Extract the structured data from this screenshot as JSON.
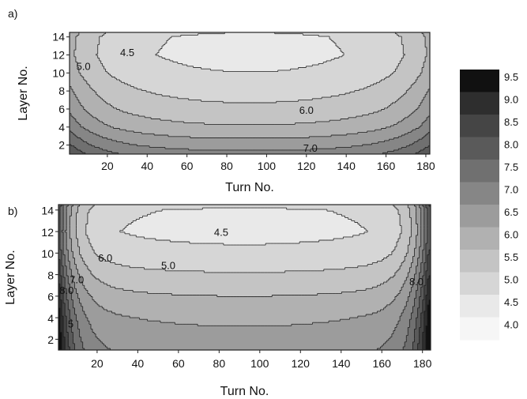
{
  "chart_data": [
    {
      "panel": "a)",
      "type": "heatmap",
      "xlabel": "Turn No.",
      "ylabel": "Layer No.",
      "xlim": [
        1,
        182
      ],
      "ylim": [
        1,
        14.5
      ],
      "xticks": [
        20,
        40,
        60,
        80,
        100,
        120,
        140,
        160,
        180
      ],
      "yticks": [
        2,
        4,
        6,
        8,
        10,
        12,
        14
      ],
      "profile": {
        "layer_base": {
          "x": [
            1,
            2,
            4,
            6,
            8,
            10,
            12,
            14,
            14.5
          ],
          "y": [
            7.15,
            6.75,
            6.05,
            5.6,
            5.3,
            5.0,
            4.85,
            4.9,
            5.0
          ]
        },
        "turn_bowl_width": 0.32,
        "turn_bowl_center": 91.5,
        "end_rise": 1.0,
        "end_decay_turns": 16
      },
      "contour_labels": [
        {
          "text": "4.5",
          "x": 30,
          "y": 12.2
        },
        {
          "text": "5.0",
          "x": 8,
          "y": 10.7
        },
        {
          "text": "6.0",
          "x": 120,
          "y": 5.8
        },
        {
          "text": "7.0",
          "x": 122,
          "y": 1.6
        }
      ]
    },
    {
      "panel": "b)",
      "type": "heatmap",
      "xlabel": "Turn No.",
      "ylabel": "Layer No.",
      "xlim": [
        1,
        184
      ],
      "ylim": [
        1,
        14.5
      ],
      "xticks": [
        20,
        40,
        60,
        80,
        100,
        120,
        140,
        160,
        180
      ],
      "yticks": [
        2,
        4,
        6,
        8,
        10,
        12,
        14
      ],
      "profile": {
        "layer_base": {
          "x": [
            1,
            2,
            4,
            6,
            8,
            10,
            12,
            14,
            14.5
          ],
          "y": [
            6.8,
            6.65,
            6.4,
            6.0,
            5.55,
            5.1,
            4.85,
            4.95,
            5.1
          ]
        },
        "turn_bowl_width": 0.25,
        "turn_bowl_center": 92.5,
        "end_rise": 3.2,
        "end_decay_turns": 7
      },
      "contour_labels": [
        {
          "text": "4.5",
          "x": 81,
          "y": 11.9
        },
        {
          "text": "5.0",
          "x": 55,
          "y": 8.8
        },
        {
          "text": "6.0",
          "x": 24,
          "y": 9.5
        },
        {
          "text": "7.0",
          "x": 10,
          "y": 7.5
        },
        {
          "text": "8.0",
          "x": 5,
          "y": 6.5
        },
        {
          "text": "5",
          "x": 7,
          "y": 3.4
        },
        {
          "text": "8.0",
          "x": 177,
          "y": 7.3
        }
      ]
    }
  ],
  "colorbar": {
    "levels": [
      4.0,
      4.5,
      5.0,
      5.5,
      6.0,
      6.5,
      7.0,
      7.5,
      8.0,
      8.5,
      9.0,
      9.5
    ],
    "colors": [
      "#f6f6f6",
      "#e9e9e9",
      "#d6d6d6",
      "#c4c4c4",
      "#b1b1b1",
      "#9c9c9c",
      "#868686",
      "#707070",
      "#5a5a5a",
      "#454545",
      "#2e2e2e",
      "#111111"
    ]
  }
}
